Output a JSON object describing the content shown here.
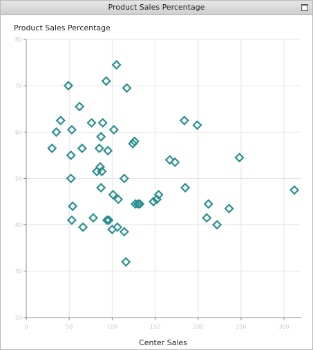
{
  "window": {
    "title": "Product Sales Percentage"
  },
  "icons": {
    "maximize": "maximize-icon"
  },
  "chart_data": {
    "type": "scatter",
    "title": "Product Sales Percentage",
    "xlabel": "Center Sales",
    "ylabel": "",
    "xlim": [
      0,
      320
    ],
    "ylim": [
      20,
      80
    ],
    "x_ticks": [
      0,
      50,
      100,
      150,
      200,
      250,
      300
    ],
    "y_ticks": [
      20,
      30,
      40,
      50,
      60,
      70,
      80
    ],
    "grid": true,
    "marker": "diamond-open",
    "marker_color": "#2a8f8f",
    "grid_color": "#e4e4e4",
    "axis_color": "#8a8a8a",
    "points": [
      [
        105,
        74.5
      ],
      [
        93,
        71
      ],
      [
        49,
        70
      ],
      [
        117,
        69.5
      ],
      [
        62,
        65.5
      ],
      [
        40,
        62.5
      ],
      [
        76,
        62
      ],
      [
        89,
        62
      ],
      [
        184,
        62.5
      ],
      [
        199,
        61.5
      ],
      [
        35,
        60
      ],
      [
        53,
        60.5
      ],
      [
        102,
        60.5
      ],
      [
        87,
        59
      ],
      [
        126,
        58
      ],
      [
        124,
        57.5
      ],
      [
        30,
        56.5
      ],
      [
        65,
        56.5
      ],
      [
        85,
        56.5
      ],
      [
        95,
        56
      ],
      [
        52,
        55
      ],
      [
        248,
        54.5
      ],
      [
        167,
        54
      ],
      [
        173,
        53.5
      ],
      [
        86,
        52.5
      ],
      [
        82,
        51.5
      ],
      [
        88,
        51.5
      ],
      [
        114,
        50
      ],
      [
        52,
        50
      ],
      [
        87,
        48
      ],
      [
        185,
        48
      ],
      [
        312,
        47.5
      ],
      [
        154,
        46.5
      ],
      [
        101,
        46.5
      ],
      [
        107,
        45.5
      ],
      [
        152,
        45.5
      ],
      [
        148,
        45
      ],
      [
        127,
        44.5
      ],
      [
        130,
        44.5
      ],
      [
        132,
        44.5
      ],
      [
        54,
        44
      ],
      [
        212,
        44.5
      ],
      [
        236,
        43.5
      ],
      [
        210,
        41.5
      ],
      [
        78,
        41.5
      ],
      [
        94,
        41
      ],
      [
        96,
        41
      ],
      [
        53,
        41
      ],
      [
        222,
        40
      ],
      [
        66,
        39.5
      ],
      [
        106,
        39.5
      ],
      [
        100,
        39
      ],
      [
        114,
        38.5
      ],
      [
        116,
        32
      ]
    ]
  }
}
